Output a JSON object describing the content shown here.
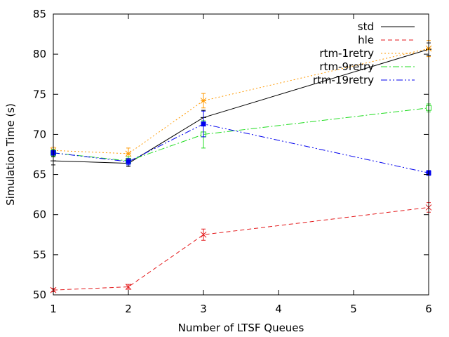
{
  "chart_data": {
    "type": "line",
    "title": "",
    "xlabel": "Number of LTSF Queues",
    "ylabel": "Simulation Time (s)",
    "xlim": [
      1,
      6
    ],
    "ylim": [
      50,
      85
    ],
    "x_ticks": [
      1,
      2,
      3,
      4,
      5,
      6
    ],
    "y_ticks": [
      50,
      55,
      60,
      65,
      70,
      75,
      80,
      85
    ],
    "grid": false,
    "legend_position": "top-right",
    "series": [
      {
        "name": "std",
        "color": "#000000",
        "dash": "solid",
        "marker": "plus",
        "x": [
          1,
          2,
          3,
          6
        ],
        "y": [
          66.7,
          66.4,
          72.1,
          80.6
        ],
        "err": [
          0.5,
          0.4,
          0.9,
          0.8
        ]
      },
      {
        "name": "hle",
        "color": "#e41a1c",
        "dash": "dashed",
        "marker": "cross",
        "x": [
          1,
          2,
          3,
          6
        ],
        "y": [
          50.6,
          51.0,
          57.5,
          60.9
        ],
        "err": [
          0.2,
          0.3,
          0.7,
          0.6
        ]
      },
      {
        "name": "rtm-1retry",
        "color": "#ff9900",
        "dash": "dotted",
        "marker": "star",
        "x": [
          1,
          2,
          3,
          6
        ],
        "y": [
          68.0,
          67.6,
          74.2,
          80.7
        ],
        "err": [
          0.4,
          0.7,
          0.9,
          1.0
        ]
      },
      {
        "name": "rtm-9retry",
        "color": "#22dd22",
        "dash": "dashdot",
        "marker": "open-square",
        "x": [
          1,
          2,
          3,
          6
        ],
        "y": [
          67.7,
          66.7,
          70.0,
          73.3
        ],
        "err": [
          0.4,
          0.5,
          1.7,
          0.5
        ]
      },
      {
        "name": "rtm-19retry",
        "color": "#0000ee",
        "dash": "dashdotdot",
        "marker": "filled-square",
        "x": [
          1,
          2,
          3,
          6
        ],
        "y": [
          67.7,
          66.6,
          71.3,
          65.2
        ],
        "err": [
          0.3,
          0.4,
          1.6,
          0.3
        ]
      }
    ]
  }
}
